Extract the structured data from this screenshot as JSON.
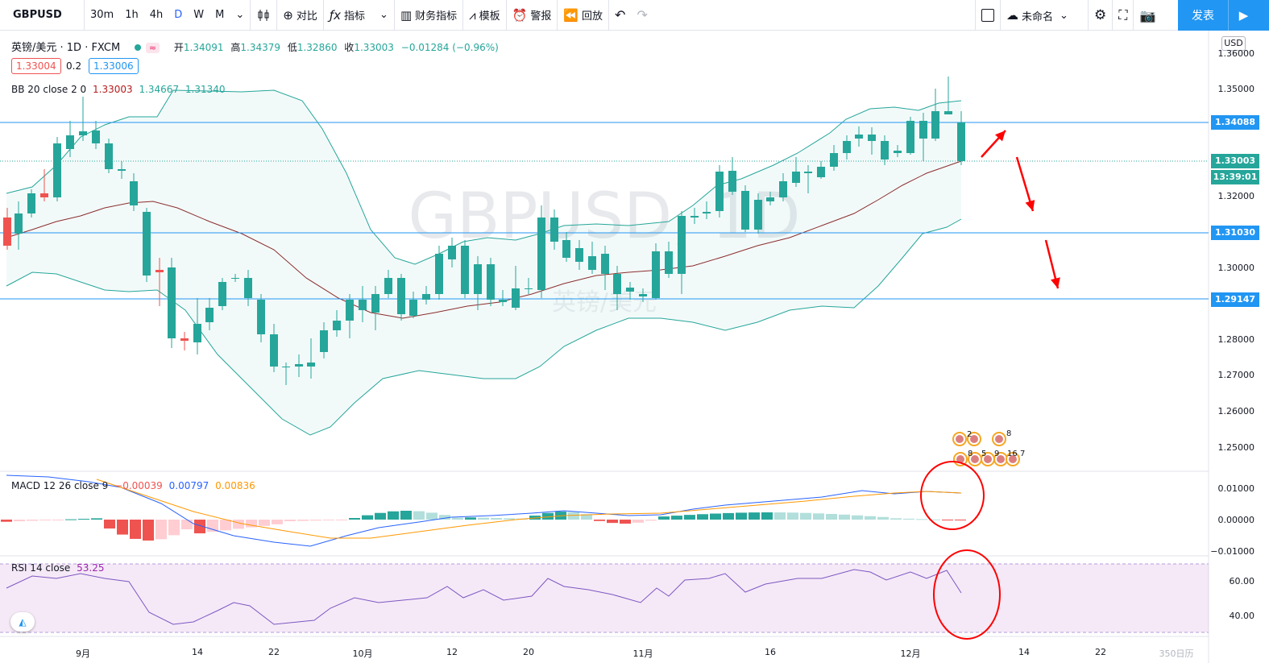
{
  "toolbar": {
    "symbol": "GBPUSD",
    "intervals": [
      "30m",
      "1h",
      "4h",
      "D",
      "W",
      "M"
    ],
    "active_interval": "D",
    "compare": "对比",
    "indicators": "指标",
    "financials": "财务指标",
    "templates": "模板",
    "alerts": "警报",
    "replay": "回放",
    "layout_name": "未命名",
    "publish": "发表"
  },
  "legend": {
    "title": "英镑/美元 · 1D · FXCM",
    "open_label": "开",
    "open": "1.34091",
    "high_label": "高",
    "high": "1.34379",
    "low_label": "低",
    "low": "1.32860",
    "close_label": "收",
    "close": "1.33003",
    "change": "−0.01284 (−0.96%)",
    "bid": "1.33004",
    "spread": "0.2",
    "ask": "1.33006",
    "bb_label": "BB 20 close 2 0",
    "bb_basis": "1.33003",
    "bb_upper": "1.34667",
    "bb_lower": "1.31340",
    "macd_label": "MACD 12 26 close 9",
    "macd_hist": "−0.00039",
    "macd_line": "0.00797",
    "macd_signal": "0.00836",
    "rsi_label": "RSI 14 close",
    "rsi_value": "53.25"
  },
  "watermark": {
    "symbol": "GBPUSD, 1D",
    "name": "英镑/美元"
  },
  "price_axis": {
    "currency": "USD",
    "labels": [
      "1.36000",
      "1.35000",
      "1.34000",
      "1.33000",
      "1.32000",
      "1.31000",
      "1.30000",
      "1.29000",
      "1.28000",
      "1.27000",
      "1.26000",
      "1.25000"
    ],
    "lines": [
      {
        "label": "1.34088",
        "color": "#2196f3"
      },
      {
        "label": "1.33003",
        "color": "#26a69a"
      },
      {
        "label": "13:39:01",
        "color": "#26a69a"
      },
      {
        "label": "1.31030",
        "color": "#2196f3"
      },
      {
        "label": "1.29147",
        "color": "#2196f3"
      }
    ]
  },
  "macd_axis": [
    "0.01000",
    "0.00000",
    "−0.01000"
  ],
  "rsi_axis": [
    "60.00",
    "40.00"
  ],
  "time_axis": [
    "9月",
    "14",
    "22",
    "10月",
    "12",
    "20",
    "11月",
    "16",
    "12月",
    "14",
    "22",
    "350日历"
  ],
  "events": {
    "row1": [
      "2",
      "8"
    ],
    "row2": [
      "8",
      "5",
      "9",
      "16",
      "7"
    ]
  },
  "colors": {
    "up": "#ef5350",
    "down": "#26a69a",
    "line": "#2196f3"
  }
}
